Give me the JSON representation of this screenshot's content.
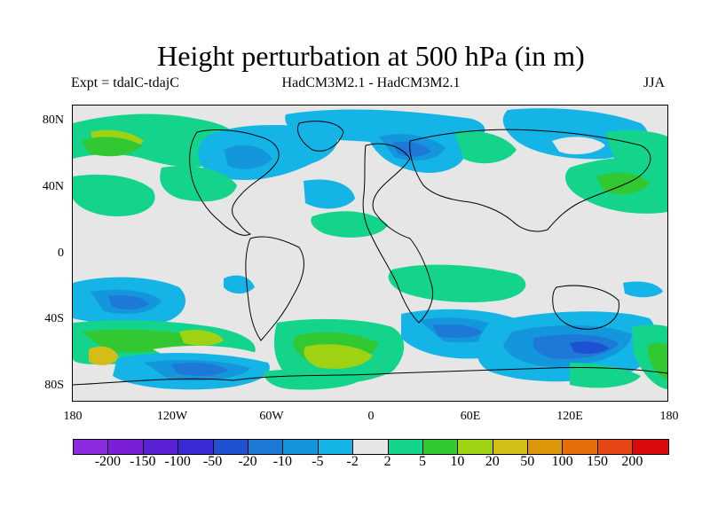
{
  "title": "Height perturbation at 500 hPa (in m)",
  "subtitle_left": "Expt = tdalC-tdajC",
  "subtitle_center": "HadCM3M2.1 - HadCM3M2.1",
  "subtitle_right": "JJA",
  "lat_labels": [
    "80N",
    "40N",
    "0",
    "40S",
    "80S"
  ],
  "lon_labels": [
    "180",
    "120W",
    "60W",
    "0",
    "60E",
    "120E",
    "180"
  ],
  "colorbar": {
    "labels": [
      "-200",
      "-150",
      "-100",
      "-50",
      "-20",
      "-10",
      "-5",
      "-2",
      "2",
      "5",
      "10",
      "20",
      "50",
      "100",
      "150",
      "200"
    ],
    "colors": [
      "#8a2be2",
      "#7a1ed8",
      "#5a22d4",
      "#3a2ad6",
      "#1e50d2",
      "#1e78d6",
      "#1496dc",
      "#14b4e6",
      "#e6e6e6",
      "#14d48c",
      "#32c832",
      "#a0d214",
      "#d2be14",
      "#dc960a",
      "#e66e0a",
      "#e64614",
      "#dc0a0a"
    ]
  },
  "colors": {
    "background": "#e6e6e6",
    "land_outline": "#000000"
  }
}
